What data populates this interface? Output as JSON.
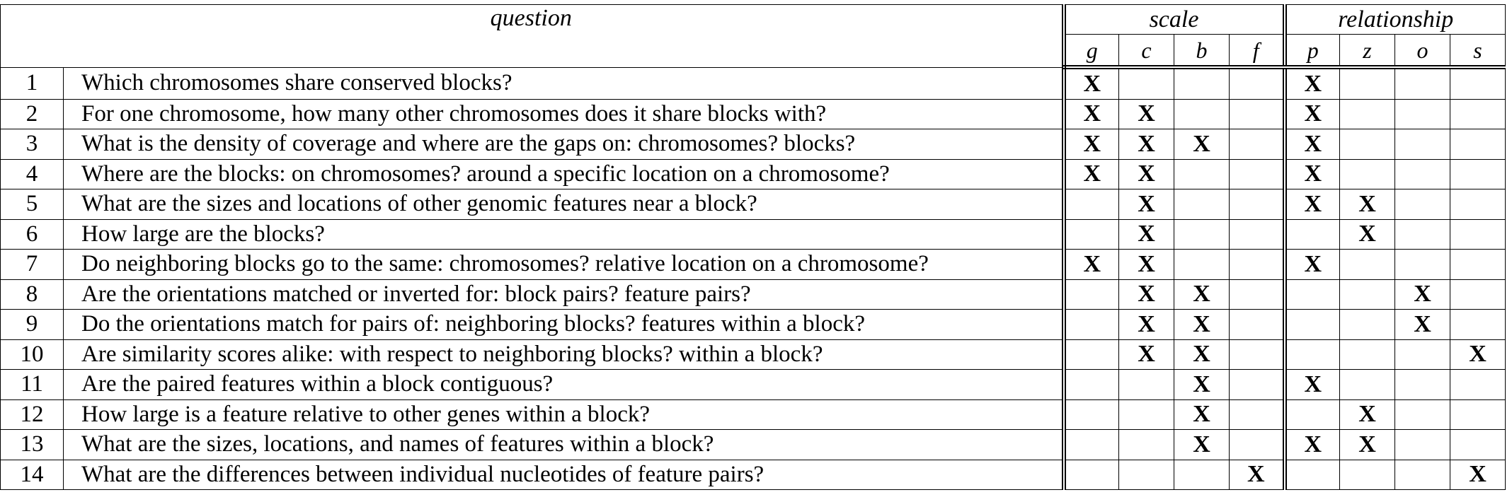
{
  "header": {
    "question": "question",
    "scale": "scale",
    "relationship": "relationship",
    "scale_cols": [
      "g",
      "c",
      "b",
      "f"
    ],
    "relationship_cols": [
      "p",
      "z",
      "o",
      "s"
    ]
  },
  "mark": "X",
  "rows": [
    {
      "num": "1",
      "question": "Which chromosomes share conserved blocks?",
      "scale": [
        1,
        0,
        0,
        0
      ],
      "rel": [
        1,
        0,
        0,
        0
      ]
    },
    {
      "num": "2",
      "question": "For one chromosome, how many other chromosomes does it share blocks with?",
      "scale": [
        1,
        1,
        0,
        0
      ],
      "rel": [
        1,
        0,
        0,
        0
      ]
    },
    {
      "num": "3",
      "question": "What is the density of coverage and where are the gaps on: chromosomes? blocks?",
      "scale": [
        1,
        1,
        1,
        0
      ],
      "rel": [
        1,
        0,
        0,
        0
      ]
    },
    {
      "num": "4",
      "question": "Where are the blocks: on chromosomes? around a specific location on a chromosome?",
      "scale": [
        1,
        1,
        0,
        0
      ],
      "rel": [
        1,
        0,
        0,
        0
      ]
    },
    {
      "num": "5",
      "question": "What are the sizes and locations of other genomic features near a block?",
      "scale": [
        0,
        1,
        0,
        0
      ],
      "rel": [
        1,
        1,
        0,
        0
      ]
    },
    {
      "num": "6",
      "question": "How large are the blocks?",
      "scale": [
        0,
        1,
        0,
        0
      ],
      "rel": [
        0,
        1,
        0,
        0
      ]
    },
    {
      "num": "7",
      "question": "Do neighboring blocks go to the same: chromosomes? relative location on a chromosome?",
      "scale": [
        1,
        1,
        0,
        0
      ],
      "rel": [
        1,
        0,
        0,
        0
      ]
    },
    {
      "num": "8",
      "question": "Are the orientations matched or inverted for: block pairs? feature pairs?",
      "scale": [
        0,
        1,
        1,
        0
      ],
      "rel": [
        0,
        0,
        1,
        0
      ]
    },
    {
      "num": "9",
      "question": "Do the orientations match for pairs of: neighboring blocks? features within a block?",
      "scale": [
        0,
        1,
        1,
        0
      ],
      "rel": [
        0,
        0,
        1,
        0
      ]
    },
    {
      "num": "10",
      "question": "Are similarity scores alike: with respect to neighboring blocks? within a block?",
      "scale": [
        0,
        1,
        1,
        0
      ],
      "rel": [
        0,
        0,
        0,
        1
      ]
    },
    {
      "num": "11",
      "question": "Are the paired features within a block contiguous?",
      "scale": [
        0,
        0,
        1,
        0
      ],
      "rel": [
        1,
        0,
        0,
        0
      ]
    },
    {
      "num": "12",
      "question": "How large is a feature relative to other genes within a block?",
      "scale": [
        0,
        0,
        1,
        0
      ],
      "rel": [
        0,
        1,
        0,
        0
      ]
    },
    {
      "num": "13",
      "question": "What are the sizes, locations, and names of features within a block?",
      "scale": [
        0,
        0,
        1,
        0
      ],
      "rel": [
        1,
        1,
        0,
        0
      ]
    },
    {
      "num": "14",
      "question": "What are the differences between individual nucleotides of feature pairs?",
      "scale": [
        0,
        0,
        0,
        1
      ],
      "rel": [
        0,
        0,
        0,
        1
      ]
    }
  ]
}
